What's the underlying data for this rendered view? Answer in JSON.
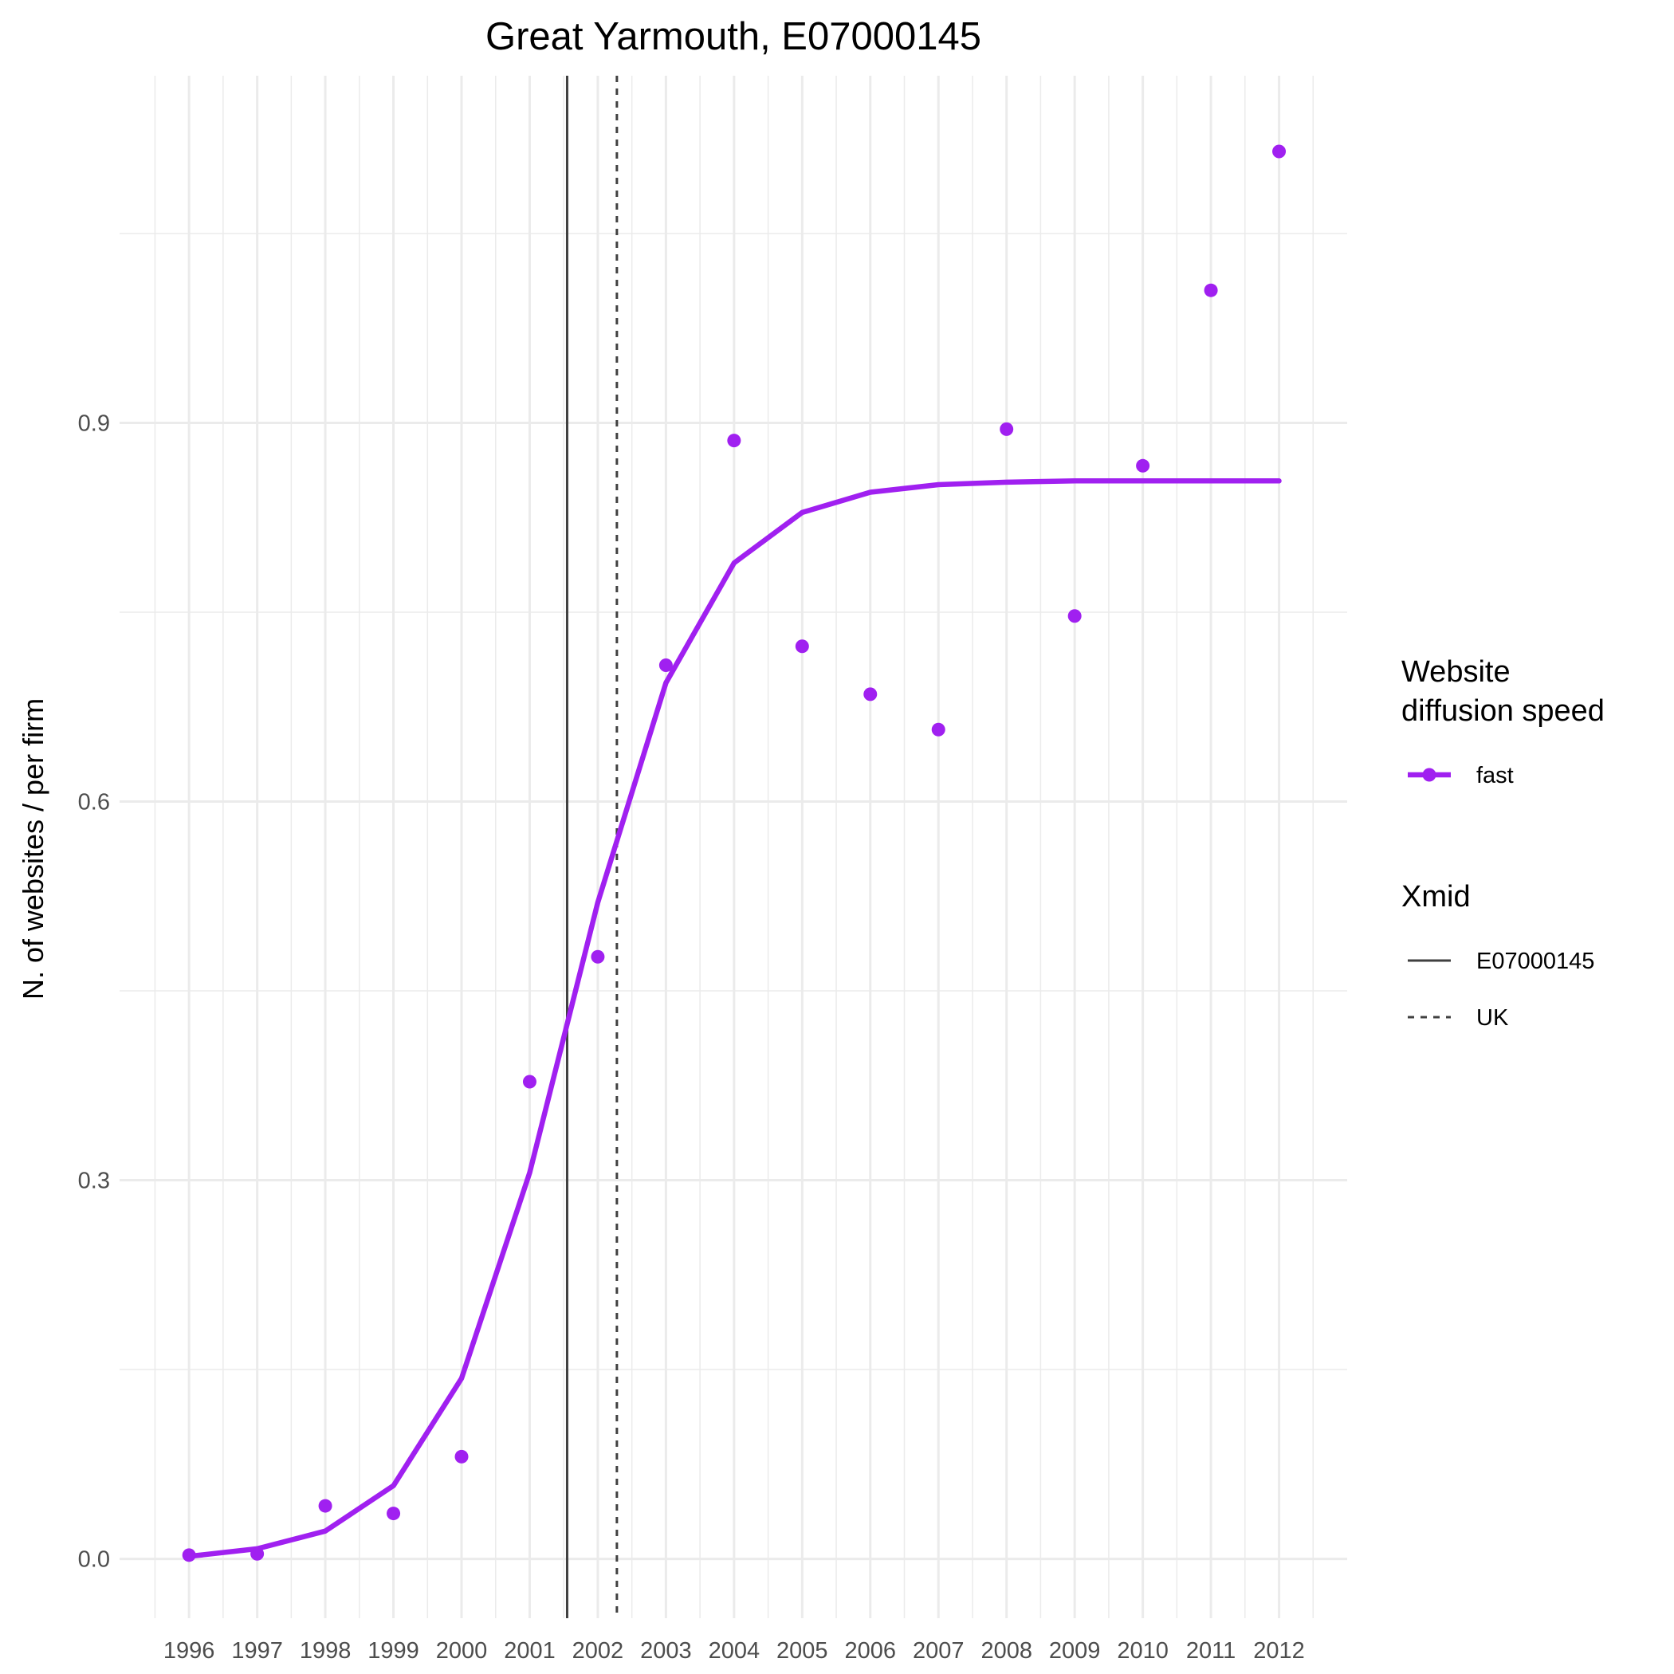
{
  "chart_data": {
    "type": "line",
    "title": "Great Yarmouth, E07000145",
    "xlabel": "",
    "ylabel": "N. of websites / per firm",
    "x": [
      1996,
      1997,
      1998,
      1999,
      2000,
      2001,
      2002,
      2003,
      2004,
      2005,
      2006,
      2007,
      2008,
      2009,
      2010,
      2011,
      2012
    ],
    "xlim": [
      1994.98,
      2013.0
    ],
    "ylim": [
      -0.047,
      1.175
    ],
    "yticks": [
      0.0,
      0.3,
      0.6,
      0.9
    ],
    "yticks_labels": [
      "0.0",
      "0.3",
      "0.6",
      "0.9"
    ],
    "grid": true,
    "legend_position": "right",
    "series": [
      {
        "name": "fast",
        "kind": "points",
        "color": "#a020f0",
        "values": [
          0.003,
          0.004,
          0.042,
          0.036,
          0.081,
          0.378,
          0.477,
          0.708,
          0.886,
          0.723,
          0.685,
          0.657,
          0.895,
          0.747,
          0.866,
          1.005,
          1.115
        ]
      },
      {
        "name": "fast",
        "kind": "fitted-line",
        "color": "#a020f0",
        "values": [
          0.002,
          0.008,
          0.022,
          0.058,
          0.143,
          0.306,
          0.52,
          0.694,
          0.789,
          0.829,
          0.845,
          0.851,
          0.853,
          0.854,
          0.854,
          0.854,
          0.854
        ]
      }
    ],
    "vlines": [
      {
        "name": "E07000145",
        "x": 2001.55,
        "style": "solid",
        "color": "#404040"
      },
      {
        "name": "UK",
        "x": 2002.28,
        "style": "dotted",
        "color": "#404040"
      }
    ],
    "legend": {
      "speed_title": [
        "Website",
        "diffusion speed"
      ],
      "speed_items": [
        {
          "label": "fast",
          "color": "#a020f0"
        }
      ],
      "xmid_title": "Xmid",
      "xmid_items": [
        {
          "label": "E07000145",
          "style": "solid"
        },
        {
          "label": "UK",
          "style": "dotted"
        }
      ]
    }
  }
}
